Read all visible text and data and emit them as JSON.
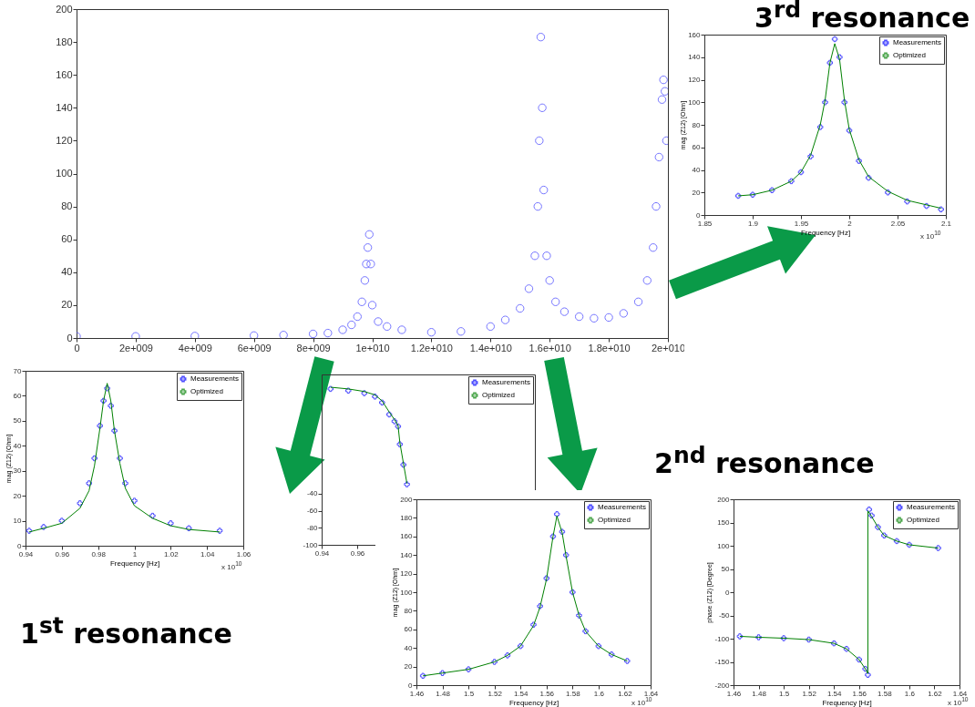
{
  "chart_data": [
    {
      "type": "scatter",
      "marker": "circle",
      "x": [
        0,
        2000000000.0,
        4000000000.0,
        6000000000.0,
        7000000000.0,
        8000000000.0,
        8500000000.0,
        9000000000.0,
        9300000000.0,
        9500000000.0,
        9650000000.0,
        9750000000.0,
        9800000000.0,
        9850000000.0,
        9900000000.0,
        9950000000.0,
        10000000000.0,
        10200000000.0,
        10500000000.0,
        11000000000.0,
        12000000000.0,
        13000000000.0,
        14000000000.0,
        14500000000.0,
        15000000000.0,
        15300000000.0,
        15500000000.0,
        15600000000.0,
        15650000000.0,
        15700000000.0,
        15750000000.0,
        15800000000.0,
        15900000000.0,
        16000000000.0,
        16200000000.0,
        16500000000.0,
        17000000000.0,
        17500000000.0,
        18000000000.0,
        18500000000.0,
        19000000000.0,
        19300000000.0,
        19500000000.0,
        19600000000.0,
        19700000000.0,
        19800000000.0,
        19850000000.0,
        19900000000.0,
        19950000000.0
      ],
      "series": [
        {
          "color": "#3a3aff",
          "values": [
            1,
            1,
            1.2,
            1.5,
            1.8,
            2.5,
            3,
            5,
            8,
            13,
            22,
            35,
            45,
            55,
            63,
            45,
            20,
            10,
            7,
            5,
            3.5,
            4,
            7,
            11,
            18,
            30,
            50,
            80,
            120,
            183,
            140,
            90,
            50,
            35,
            22,
            16,
            13,
            12,
            12.5,
            15,
            22,
            35,
            55,
            80,
            110,
            145,
            157,
            150,
            120
          ]
        }
      ],
      "xlim": [
        0,
        20000000000.0
      ],
      "xticks": [
        0,
        {
          "value": 2000000000.0,
          "label": "2e+009"
        },
        {
          "value": 4000000000.0,
          "label": "4e+009"
        },
        {
          "value": 6000000000.0,
          "label": "6e+009"
        },
        {
          "value": 8000000000.0,
          "label": "8e+009"
        },
        {
          "value": 10000000000.0,
          "label": "1e+010"
        },
        {
          "value": 12000000000.0,
          "label": "1.2e+010"
        },
        {
          "value": 14000000000.0,
          "label": "1.4e+010"
        },
        {
          "value": 16000000000.0,
          "label": "1.6e+010"
        },
        {
          "value": 18000000000.0,
          "label": "1.8e+010"
        },
        {
          "value": 20000000000.0,
          "label": "2e+010"
        }
      ],
      "ylim": [
        0,
        200
      ],
      "yticks": [
        0,
        20,
        40,
        60,
        80,
        100,
        120,
        140,
        160,
        180,
        200
      ]
    },
    {
      "type": "scatter",
      "title": "3$^{rd}$ resonance",
      "xlabel": "Frequency [Hz]",
      "ylabel": "mag (Z12) [Ohm]",
      "legend": "top right",
      "annotations": [
        "x 10$^{10}$"
      ],
      "series": [
        {
          "name": "Measurements",
          "type": "scatter",
          "marker": "cross",
          "color": "#0000ff",
          "x": [
            1.885,
            1.9,
            1.92,
            1.94,
            1.95,
            1.96,
            1.97,
            1.975,
            1.98,
            1.985,
            1.99,
            1.995,
            2.0,
            2.01,
            2.02,
            2.04,
            2.06,
            2.08,
            2.095
          ],
          "values": [
            17,
            18,
            22,
            30,
            38,
            52,
            78,
            100,
            135,
            156,
            140,
            100,
            75,
            48,
            33,
            20,
            12,
            8,
            5
          ]
        },
        {
          "name": "Optimized",
          "type": "line",
          "color": "#008000",
          "x": [
            1.885,
            1.9,
            1.92,
            1.94,
            1.95,
            1.96,
            1.97,
            1.975,
            1.98,
            1.985,
            1.99,
            1.995,
            2.0,
            2.01,
            2.02,
            2.04,
            2.06,
            2.08,
            2.095
          ],
          "values": [
            17,
            18,
            22,
            30,
            38,
            53,
            80,
            102,
            135,
            152,
            138,
            102,
            76,
            49,
            34,
            21,
            13,
            9,
            6
          ]
        }
      ],
      "xlim": [
        1.85,
        2.1
      ],
      "xticks": [
        1.85,
        1.9,
        1.95,
        2,
        2.05,
        2.1
      ],
      "ylim": [
        0,
        160
      ],
      "yticks": [
        0,
        20,
        40,
        60,
        80,
        100,
        120,
        140,
        160
      ]
    },
    {
      "type": "scatter",
      "title": "1$^{st}$ resonance",
      "xlabel": "Frequency [Hz]",
      "ylabel": "mag (Z12) [Ohm]",
      "legend": "top right",
      "annotations": [
        "x 10$^{10}$"
      ],
      "series": [
        {
          "name": "Measurements",
          "type": "scatter",
          "marker": "cross",
          "color": "#0000ff",
          "x": [
            0.942,
            0.95,
            0.96,
            0.97,
            0.975,
            0.978,
            0.981,
            0.983,
            0.985,
            0.987,
            0.989,
            0.992,
            0.995,
            1.0,
            1.01,
            1.02,
            1.03,
            1.047
          ],
          "values": [
            6,
            7.5,
            10,
            17,
            25,
            35,
            48,
            58,
            63,
            56,
            46,
            35,
            25,
            18,
            12,
            9,
            7,
            6
          ]
        },
        {
          "name": "Optimized",
          "type": "line",
          "color": "#008000",
          "x": [
            0.942,
            0.95,
            0.96,
            0.97,
            0.975,
            0.978,
            0.981,
            0.983,
            0.985,
            0.987,
            0.989,
            0.992,
            0.995,
            1.0,
            1.01,
            1.02,
            1.03,
            1.047
          ],
          "values": [
            5.5,
            7,
            9,
            15,
            22,
            32,
            47,
            58,
            65,
            58,
            46,
            33,
            23,
            16,
            11,
            8,
            6.5,
            5.5
          ]
        }
      ],
      "xlim": [
        0.94,
        1.06
      ],
      "xticks": [
        0.94,
        0.96,
        0.98,
        1,
        1.02,
        1.04,
        1.06
      ],
      "ylim": [
        0,
        70
      ],
      "yticks": [
        0,
        10,
        20,
        30,
        40,
        50,
        60,
        70
      ]
    },
    {
      "type": "scatter",
      "legend": "top right",
      "series": [
        {
          "name": "Measurements",
          "type": "scatter",
          "marker": "cross",
          "color": "#0000ff",
          "x": [
            0.945,
            0.955,
            0.964,
            0.97,
            0.974,
            0.978,
            0.981,
            0.983,
            0.984,
            0.986,
            0.988
          ],
          "values": [
            83,
            81,
            78,
            74,
            67,
            53,
            45,
            39,
            18,
            -6,
            -29
          ]
        },
        {
          "name": "Optimized",
          "type": "line",
          "color": "#008000",
          "x": [
            0.945,
            0.955,
            0.964,
            0.97,
            0.974,
            0.978,
            0.981,
            0.983,
            0.984,
            0.986,
            0.988
          ],
          "values": [
            85,
            83,
            80,
            76,
            69,
            56,
            47,
            40,
            20,
            -4,
            -28
          ]
        }
      ],
      "xlim": [
        0.94,
        1.06
      ],
      "xticks": [
        0.94,
        0.96
      ],
      "ylim": [
        -100,
        100
      ],
      "yticks": [
        -100,
        -80,
        -60,
        -40
      ]
    },
    {
      "type": "scatter",
      "xlabel": "Frequency [Hz]",
      "ylabel": "mag (Z12) [Ohm]",
      "legend": "top right",
      "annotations": [
        "x 10$^{10}$"
      ],
      "series": [
        {
          "name": "Measurements",
          "type": "scatter",
          "marker": "cross",
          "color": "#0000ff",
          "x": [
            1.465,
            1.48,
            1.5,
            1.52,
            1.53,
            1.54,
            1.55,
            1.555,
            1.56,
            1.565,
            1.568,
            1.572,
            1.575,
            1.58,
            1.585,
            1.59,
            1.6,
            1.61,
            1.622
          ],
          "values": [
            10,
            13,
            17,
            25,
            32,
            42,
            65,
            85,
            115,
            160,
            184,
            165,
            140,
            100,
            75,
            58,
            42,
            33,
            26
          ]
        },
        {
          "name": "Optimized",
          "type": "line",
          "color": "#008000",
          "x": [
            1.465,
            1.48,
            1.5,
            1.52,
            1.53,
            1.54,
            1.55,
            1.555,
            1.56,
            1.565,
            1.568,
            1.572,
            1.575,
            1.58,
            1.585,
            1.59,
            1.6,
            1.61,
            1.622
          ],
          "values": [
            10,
            13,
            17,
            25,
            32,
            42,
            64,
            84,
            114,
            160,
            182,
            164,
            139,
            100,
            75,
            58,
            42,
            33,
            26
          ]
        }
      ],
      "xlim": [
        1.46,
        1.64
      ],
      "xticks": [
        1.46,
        1.48,
        1.5,
        1.52,
        1.54,
        1.56,
        1.58,
        1.6,
        1.62,
        1.64
      ],
      "ylim": [
        0,
        200
      ],
      "yticks": [
        0,
        20,
        40,
        60,
        80,
        100,
        120,
        140,
        160,
        180,
        200
      ]
    },
    {
      "type": "scatter",
      "title": "2$^{nd}$ resonance",
      "xlabel": "Frequency [Hz]",
      "ylabel": "phase (Z12) [Degree]",
      "legend": "top right",
      "annotations": [
        "x 10$^{10}$"
      ],
      "series": [
        {
          "name": "Measurements",
          "type": "scatter",
          "marker": "cross",
          "color": "#0000ff",
          "x": [
            1.465,
            1.48,
            1.5,
            1.52,
            1.54,
            1.55,
            1.56,
            1.565,
            1.567,
            1.568,
            1.57,
            1.575,
            1.58,
            1.59,
            1.6,
            1.623
          ],
          "values": [
            -95,
            -97,
            -99,
            -102,
            -110,
            -122,
            -145,
            -165,
            -178,
            178,
            165,
            140,
            122,
            110,
            102,
            95
          ]
        },
        {
          "name": "Optimized",
          "type": "line",
          "color": "#008000",
          "x": [
            1.465,
            1.48,
            1.5,
            1.52,
            1.54,
            1.55,
            1.56,
            1.565,
            1.567,
            1.567,
            1.57,
            1.575,
            1.58,
            1.59,
            1.6,
            1.623
          ],
          "values": [
            -95,
            -97,
            -99,
            -102,
            -110,
            -122,
            -145,
            -165,
            -175,
            175,
            163,
            140,
            122,
            110,
            102,
            95
          ]
        }
      ],
      "xlim": [
        1.46,
        1.64
      ],
      "xticks": [
        1.46,
        1.48,
        1.5,
        1.52,
        1.54,
        1.56,
        1.58,
        1.6,
        1.62,
        1.64
      ],
      "ylim": [
        -200,
        200
      ],
      "yticks": [
        -200,
        -150,
        -100,
        -50,
        0,
        50,
        100,
        150,
        200
      ]
    }
  ]
}
